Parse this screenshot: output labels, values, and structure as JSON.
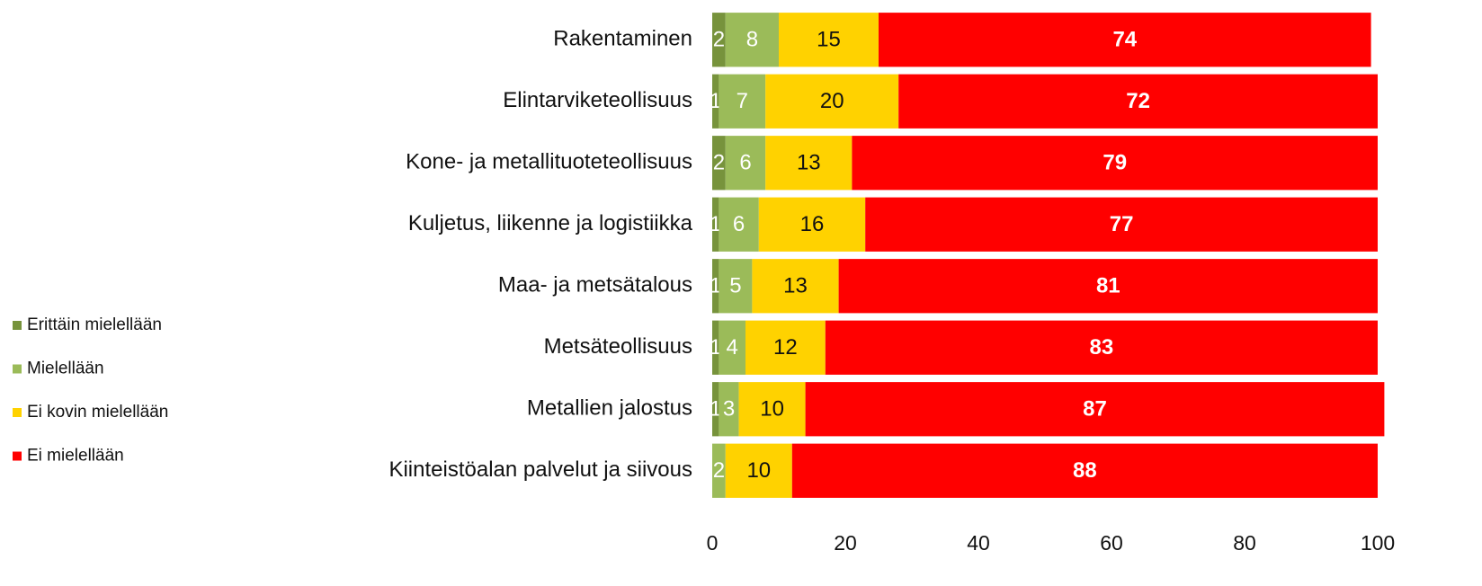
{
  "chart_data": {
    "type": "stacked_barh",
    "categories": [
      "Rakentaminen",
      "Elintarviketeollisuus",
      "Kone- ja metallituoteteollisuus",
      "Kuljetus, liikenne ja logistiikka",
      "Maa- ja metsätalous",
      "Metsäteollisuus",
      "Metallien jalostus",
      "Kiinteistöalan palvelut ja siivous"
    ],
    "series": [
      {
        "name": "Erittäin mielellään",
        "color": "#77933c",
        "values": [
          2,
          1,
          2,
          1,
          1,
          1,
          1,
          0
        ]
      },
      {
        "name": "Mielellään",
        "color": "#9bbb59",
        "values": [
          8,
          7,
          6,
          6,
          5,
          4,
          3,
          2
        ]
      },
      {
        "name": "Ei kovin mielellään",
        "color": "#ffd200",
        "values": [
          15,
          20,
          13,
          16,
          13,
          12,
          10,
          10
        ]
      },
      {
        "name": "Ei mielellään",
        "color": "#ff0000",
        "values": [
          74,
          72,
          79,
          77,
          81,
          83,
          87,
          88
        ]
      }
    ],
    "xlim": [
      0,
      100
    ],
    "xticks": [
      0,
      20,
      40,
      60,
      80,
      100
    ],
    "grid": false,
    "legend": "left"
  }
}
